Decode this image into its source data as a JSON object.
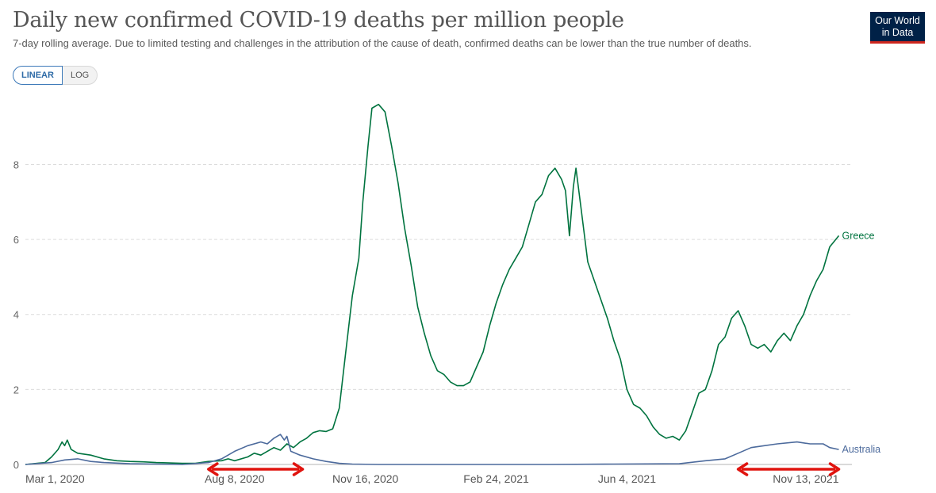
{
  "header": {
    "title": "Daily new confirmed COVID-19 deaths per million people",
    "subtitle": "7-day rolling average. Due to limited testing and challenges in the attribution of the cause of death, confirmed deaths can be lower than the true number of deaths.",
    "logo_line1": "Our World",
    "logo_line2": "in Data"
  },
  "controls": {
    "linear_label": "LINEAR",
    "log_label": "LOG",
    "selected": "LINEAR"
  },
  "colors": {
    "greece": "#00733f",
    "australia": "#4c6a9c",
    "annotation": "#e0140f",
    "logo_bg": "#002147",
    "logo_accent": "#ce261e"
  },
  "chart_data": {
    "type": "line",
    "x_unit": "days since Mar 1, 2020",
    "xlim": [
      0,
      632
    ],
    "ylim": [
      0,
      9.7
    ],
    "y_ticks": [
      0,
      2,
      4,
      6,
      8
    ],
    "x_ticks": [
      {
        "label": "Mar 1, 2020",
        "x": 0
      },
      {
        "label": "Aug 8, 2020",
        "x": 160
      },
      {
        "label": "Nov 16, 2020",
        "x": 260
      },
      {
        "label": "Feb 24, 2021",
        "x": 360
      },
      {
        "label": "Jun 4, 2021",
        "x": 460
      },
      {
        "label": "Nov 13, 2021",
        "x": 622
      }
    ],
    "grid": "horizontal dashed",
    "series": [
      {
        "name": "Greece",
        "points": [
          [
            0,
            0
          ],
          [
            15,
            0.05
          ],
          [
            20,
            0.2
          ],
          [
            25,
            0.4
          ],
          [
            28,
            0.6
          ],
          [
            30,
            0.5
          ],
          [
            32,
            0.65
          ],
          [
            35,
            0.4
          ],
          [
            40,
            0.3
          ],
          [
            50,
            0.25
          ],
          [
            60,
            0.15
          ],
          [
            70,
            0.1
          ],
          [
            80,
            0.08
          ],
          [
            90,
            0.07
          ],
          [
            100,
            0.05
          ],
          [
            110,
            0.04
          ],
          [
            120,
            0.03
          ],
          [
            130,
            0.03
          ],
          [
            140,
            0.08
          ],
          [
            150,
            0.1
          ],
          [
            155,
            0.15
          ],
          [
            160,
            0.1
          ],
          [
            170,
            0.2
          ],
          [
            175,
            0.3
          ],
          [
            180,
            0.25
          ],
          [
            185,
            0.35
          ],
          [
            190,
            0.45
          ],
          [
            195,
            0.38
          ],
          [
            200,
            0.55
          ],
          [
            205,
            0.45
          ],
          [
            210,
            0.6
          ],
          [
            215,
            0.7
          ],
          [
            220,
            0.85
          ],
          [
            225,
            0.9
          ],
          [
            230,
            0.88
          ],
          [
            235,
            0.95
          ],
          [
            240,
            1.5
          ],
          [
            245,
            3
          ],
          [
            250,
            4.5
          ],
          [
            255,
            5.5
          ],
          [
            258,
            7
          ],
          [
            262,
            8.5
          ],
          [
            265,
            9.5
          ],
          [
            270,
            9.6
          ],
          [
            275,
            9.4
          ],
          [
            280,
            8.5
          ],
          [
            285,
            7.5
          ],
          [
            290,
            6.3
          ],
          [
            295,
            5.3
          ],
          [
            300,
            4.2
          ],
          [
            305,
            3.5
          ],
          [
            310,
            2.9
          ],
          [
            315,
            2.5
          ],
          [
            320,
            2.4
          ],
          [
            325,
            2.2
          ],
          [
            330,
            2.1
          ],
          [
            335,
            2.1
          ],
          [
            340,
            2.2
          ],
          [
            345,
            2.6
          ],
          [
            350,
            3.0
          ],
          [
            355,
            3.7
          ],
          [
            360,
            4.3
          ],
          [
            365,
            4.8
          ],
          [
            370,
            5.2
          ],
          [
            375,
            5.5
          ],
          [
            380,
            5.8
          ],
          [
            385,
            6.4
          ],
          [
            390,
            7.0
          ],
          [
            395,
            7.2
          ],
          [
            400,
            7.7
          ],
          [
            405,
            7.9
          ],
          [
            410,
            7.6
          ],
          [
            413,
            7.3
          ],
          [
            416,
            6.1
          ],
          [
            419,
            7.4
          ],
          [
            421,
            7.9
          ],
          [
            425,
            6.8
          ],
          [
            430,
            5.4
          ],
          [
            435,
            4.9
          ],
          [
            440,
            4.4
          ],
          [
            445,
            3.9
          ],
          [
            450,
            3.3
          ],
          [
            455,
            2.8
          ],
          [
            460,
            2.0
          ],
          [
            465,
            1.6
          ],
          [
            470,
            1.5
          ],
          [
            475,
            1.3
          ],
          [
            480,
            1.0
          ],
          [
            485,
            0.8
          ],
          [
            490,
            0.7
          ],
          [
            495,
            0.75
          ],
          [
            500,
            0.65
          ],
          [
            505,
            0.9
          ],
          [
            510,
            1.4
          ],
          [
            515,
            1.9
          ],
          [
            520,
            2.0
          ],
          [
            525,
            2.5
          ],
          [
            530,
            3.2
          ],
          [
            535,
            3.4
          ],
          [
            540,
            3.9
          ],
          [
            545,
            4.1
          ],
          [
            550,
            3.7
          ],
          [
            555,
            3.2
          ],
          [
            560,
            3.1
          ],
          [
            565,
            3.2
          ],
          [
            570,
            3.0
          ],
          [
            575,
            3.3
          ],
          [
            580,
            3.5
          ],
          [
            585,
            3.3
          ],
          [
            590,
            3.7
          ],
          [
            595,
            4.0
          ],
          [
            600,
            4.5
          ],
          [
            605,
            4.9
          ],
          [
            610,
            5.2
          ],
          [
            615,
            5.8
          ],
          [
            622,
            6.1
          ]
        ]
      },
      {
        "name": "Australia",
        "points": [
          [
            0,
            0
          ],
          [
            20,
            0.05
          ],
          [
            30,
            0.12
          ],
          [
            40,
            0.15
          ],
          [
            50,
            0.08
          ],
          [
            60,
            0.05
          ],
          [
            80,
            0.02
          ],
          [
            100,
            0.01
          ],
          [
            120,
            0
          ],
          [
            140,
            0.05
          ],
          [
            150,
            0.15
          ],
          [
            160,
            0.35
          ],
          [
            170,
            0.5
          ],
          [
            180,
            0.6
          ],
          [
            185,
            0.55
          ],
          [
            190,
            0.7
          ],
          [
            195,
            0.8
          ],
          [
            198,
            0.65
          ],
          [
            200,
            0.75
          ],
          [
            203,
            0.35
          ],
          [
            210,
            0.25
          ],
          [
            220,
            0.15
          ],
          [
            230,
            0.08
          ],
          [
            240,
            0.03
          ],
          [
            250,
            0.01
          ],
          [
            270,
            0
          ],
          [
            300,
            0
          ],
          [
            350,
            0
          ],
          [
            400,
            0
          ],
          [
            450,
            0.01
          ],
          [
            500,
            0.02
          ],
          [
            520,
            0.1
          ],
          [
            535,
            0.15
          ],
          [
            545,
            0.3
          ],
          [
            555,
            0.45
          ],
          [
            565,
            0.5
          ],
          [
            575,
            0.55
          ],
          [
            590,
            0.6
          ],
          [
            600,
            0.55
          ],
          [
            610,
            0.55
          ],
          [
            615,
            0.45
          ],
          [
            622,
            0.4
          ]
        ]
      }
    ],
    "annotations": [
      {
        "type": "double-arrow",
        "x_from": 140,
        "x_to": 212,
        "y": -0.03
      },
      {
        "type": "double-arrow",
        "x_from": 545,
        "x_to": 622,
        "y": -0.03
      }
    ]
  }
}
